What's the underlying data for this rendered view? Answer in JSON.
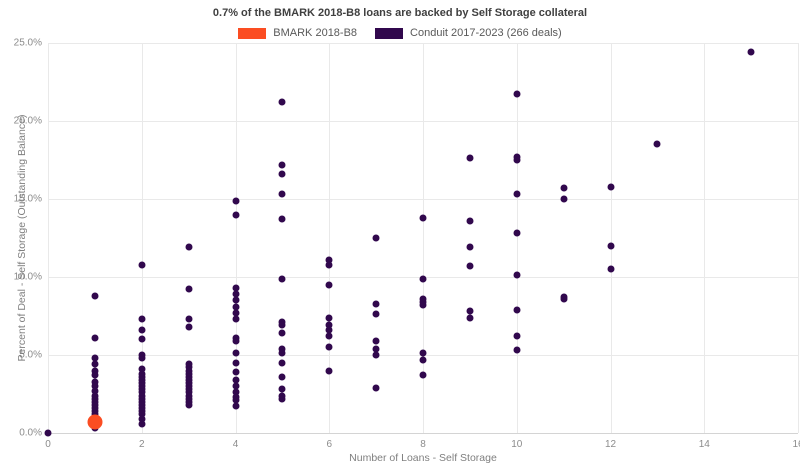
{
  "title": "0.7% of the BMARK 2018-B8 loans are backed by Self Storage collateral",
  "legend": {
    "items": [
      {
        "label": "BMARK 2018-B8",
        "color": "#fb4d22"
      },
      {
        "label": "Conduit 2017-2023 (266 deals)",
        "color": "#31084d"
      }
    ]
  },
  "chart_data": {
    "type": "scatter",
    "title": "0.7% of the BMARK 2018-B8 loans are backed by Self Storage collateral",
    "xlabel": "Number of Loans - Self Storage",
    "ylabel": "Percent of Deal - Self Storage (Outstanding Balance)",
    "xlim": [
      0,
      16
    ],
    "ylim": [
      0,
      25
    ],
    "grid": true,
    "legend_position": "top-center",
    "x_ticks": [
      {
        "value": 0,
        "label": "0"
      },
      {
        "value": 2,
        "label": "2"
      },
      {
        "value": 4,
        "label": "4"
      },
      {
        "value": 6,
        "label": "6"
      },
      {
        "value": 8,
        "label": "8"
      },
      {
        "value": 10,
        "label": "10"
      },
      {
        "value": 12,
        "label": "12"
      },
      {
        "value": 14,
        "label": "14"
      },
      {
        "value": 16,
        "label": "16"
      }
    ],
    "y_ticks": [
      {
        "value": 0,
        "label": "0.0%"
      },
      {
        "value": 5,
        "label": "5.0%"
      },
      {
        "value": 10,
        "label": "10.0%"
      },
      {
        "value": 15,
        "label": "15.0%"
      },
      {
        "value": 20,
        "label": "20.0%"
      },
      {
        "value": 25,
        "label": "25.0%"
      }
    ],
    "series": [
      {
        "name": "BMARK 2018-B8",
        "color": "#fb4d22",
        "marker_size": 15,
        "points": [
          [
            1,
            0.7
          ]
        ]
      },
      {
        "name": "Conduit 2017-2023 (266 deals)",
        "color": "#31084d",
        "marker_size": 7,
        "points": [
          [
            0,
            0.0
          ],
          [
            1,
            8.8
          ],
          [
            1,
            6.1
          ],
          [
            1,
            4.8
          ],
          [
            1,
            4.4
          ],
          [
            1,
            4.0
          ],
          [
            1,
            3.7
          ],
          [
            1,
            3.3
          ],
          [
            1,
            3.0
          ],
          [
            1,
            2.7
          ],
          [
            1,
            2.4
          ],
          [
            1,
            2.2
          ],
          [
            1,
            2.0
          ],
          [
            1,
            1.8
          ],
          [
            1,
            1.6
          ],
          [
            1,
            1.4
          ],
          [
            1,
            1.2
          ],
          [
            1,
            1.0
          ],
          [
            1,
            0.9
          ],
          [
            1,
            0.3
          ],
          [
            2,
            10.8
          ],
          [
            2,
            7.3
          ],
          [
            2,
            6.6
          ],
          [
            2,
            6.0
          ],
          [
            2,
            5.0
          ],
          [
            2,
            4.8
          ],
          [
            2,
            4.1
          ],
          [
            2,
            3.8
          ],
          [
            2,
            3.6
          ],
          [
            2,
            3.4
          ],
          [
            2,
            3.2
          ],
          [
            2,
            3.0
          ],
          [
            2,
            2.8
          ],
          [
            2,
            2.6
          ],
          [
            2,
            2.4
          ],
          [
            2,
            2.2
          ],
          [
            2,
            2.0
          ],
          [
            2,
            1.8
          ],
          [
            2,
            1.6
          ],
          [
            2,
            1.4
          ],
          [
            2,
            1.2
          ],
          [
            2,
            0.9
          ],
          [
            2,
            0.6
          ],
          [
            3,
            11.9
          ],
          [
            3,
            9.2
          ],
          [
            3,
            7.3
          ],
          [
            3,
            6.8
          ],
          [
            3,
            4.4
          ],
          [
            3,
            4.2
          ],
          [
            3,
            4.0
          ],
          [
            3,
            3.8
          ],
          [
            3,
            3.6
          ],
          [
            3,
            3.4
          ],
          [
            3,
            3.2
          ],
          [
            3,
            3.0
          ],
          [
            3,
            2.8
          ],
          [
            3,
            2.6
          ],
          [
            3,
            2.4
          ],
          [
            3,
            2.2
          ],
          [
            3,
            2.0
          ],
          [
            3,
            1.8
          ],
          [
            4,
            14.9
          ],
          [
            4,
            14.0
          ],
          [
            4,
            9.3
          ],
          [
            4,
            8.9
          ],
          [
            4,
            8.5
          ],
          [
            4,
            8.1
          ],
          [
            4,
            7.7
          ],
          [
            4,
            7.3
          ],
          [
            4,
            6.1
          ],
          [
            4,
            5.9
          ],
          [
            4,
            5.1
          ],
          [
            4,
            4.5
          ],
          [
            4,
            3.9
          ],
          [
            4,
            3.4
          ],
          [
            4,
            3.0
          ],
          [
            4,
            2.6
          ],
          [
            4,
            2.3
          ],
          [
            4,
            2.1
          ],
          [
            4,
            1.7
          ],
          [
            5,
            21.2
          ],
          [
            5,
            17.2
          ],
          [
            5,
            16.6
          ],
          [
            5,
            15.3
          ],
          [
            5,
            13.7
          ],
          [
            5,
            9.9
          ],
          [
            5,
            7.1
          ],
          [
            5,
            6.9
          ],
          [
            5,
            6.4
          ],
          [
            5,
            5.4
          ],
          [
            5,
            5.1
          ],
          [
            5,
            4.5
          ],
          [
            5,
            3.6
          ],
          [
            5,
            2.8
          ],
          [
            5,
            2.4
          ],
          [
            5,
            2.2
          ],
          [
            6,
            11.1
          ],
          [
            6,
            10.8
          ],
          [
            6,
            9.5
          ],
          [
            6,
            7.4
          ],
          [
            6,
            6.9
          ],
          [
            6,
            6.6
          ],
          [
            6,
            6.2
          ],
          [
            6,
            5.5
          ],
          [
            6,
            4.0
          ],
          [
            7,
            12.5
          ],
          [
            7,
            8.3
          ],
          [
            7,
            7.6
          ],
          [
            7,
            5.9
          ],
          [
            7,
            5.4
          ],
          [
            7,
            5.0
          ],
          [
            7,
            2.9
          ],
          [
            8,
            13.8
          ],
          [
            8,
            9.9
          ],
          [
            8,
            8.6
          ],
          [
            8,
            8.4
          ],
          [
            8,
            8.2
          ],
          [
            8,
            5.1
          ],
          [
            8,
            4.7
          ],
          [
            8,
            3.7
          ],
          [
            9,
            17.6
          ],
          [
            9,
            13.6
          ],
          [
            9,
            11.9
          ],
          [
            9,
            10.7
          ],
          [
            9,
            7.8
          ],
          [
            9,
            7.4
          ],
          [
            10,
            21.7
          ],
          [
            10,
            17.7
          ],
          [
            10,
            17.5
          ],
          [
            10,
            15.3
          ],
          [
            10,
            12.8
          ],
          [
            10,
            10.1
          ],
          [
            10,
            7.9
          ],
          [
            10,
            6.2
          ],
          [
            10,
            5.3
          ],
          [
            11,
            15.7
          ],
          [
            11,
            15.0
          ],
          [
            11,
            8.7
          ],
          [
            11,
            8.6
          ],
          [
            12,
            15.8
          ],
          [
            12,
            12.0
          ],
          [
            12,
            10.5
          ],
          [
            13,
            18.5
          ],
          [
            15,
            24.4
          ]
        ]
      }
    ]
  }
}
